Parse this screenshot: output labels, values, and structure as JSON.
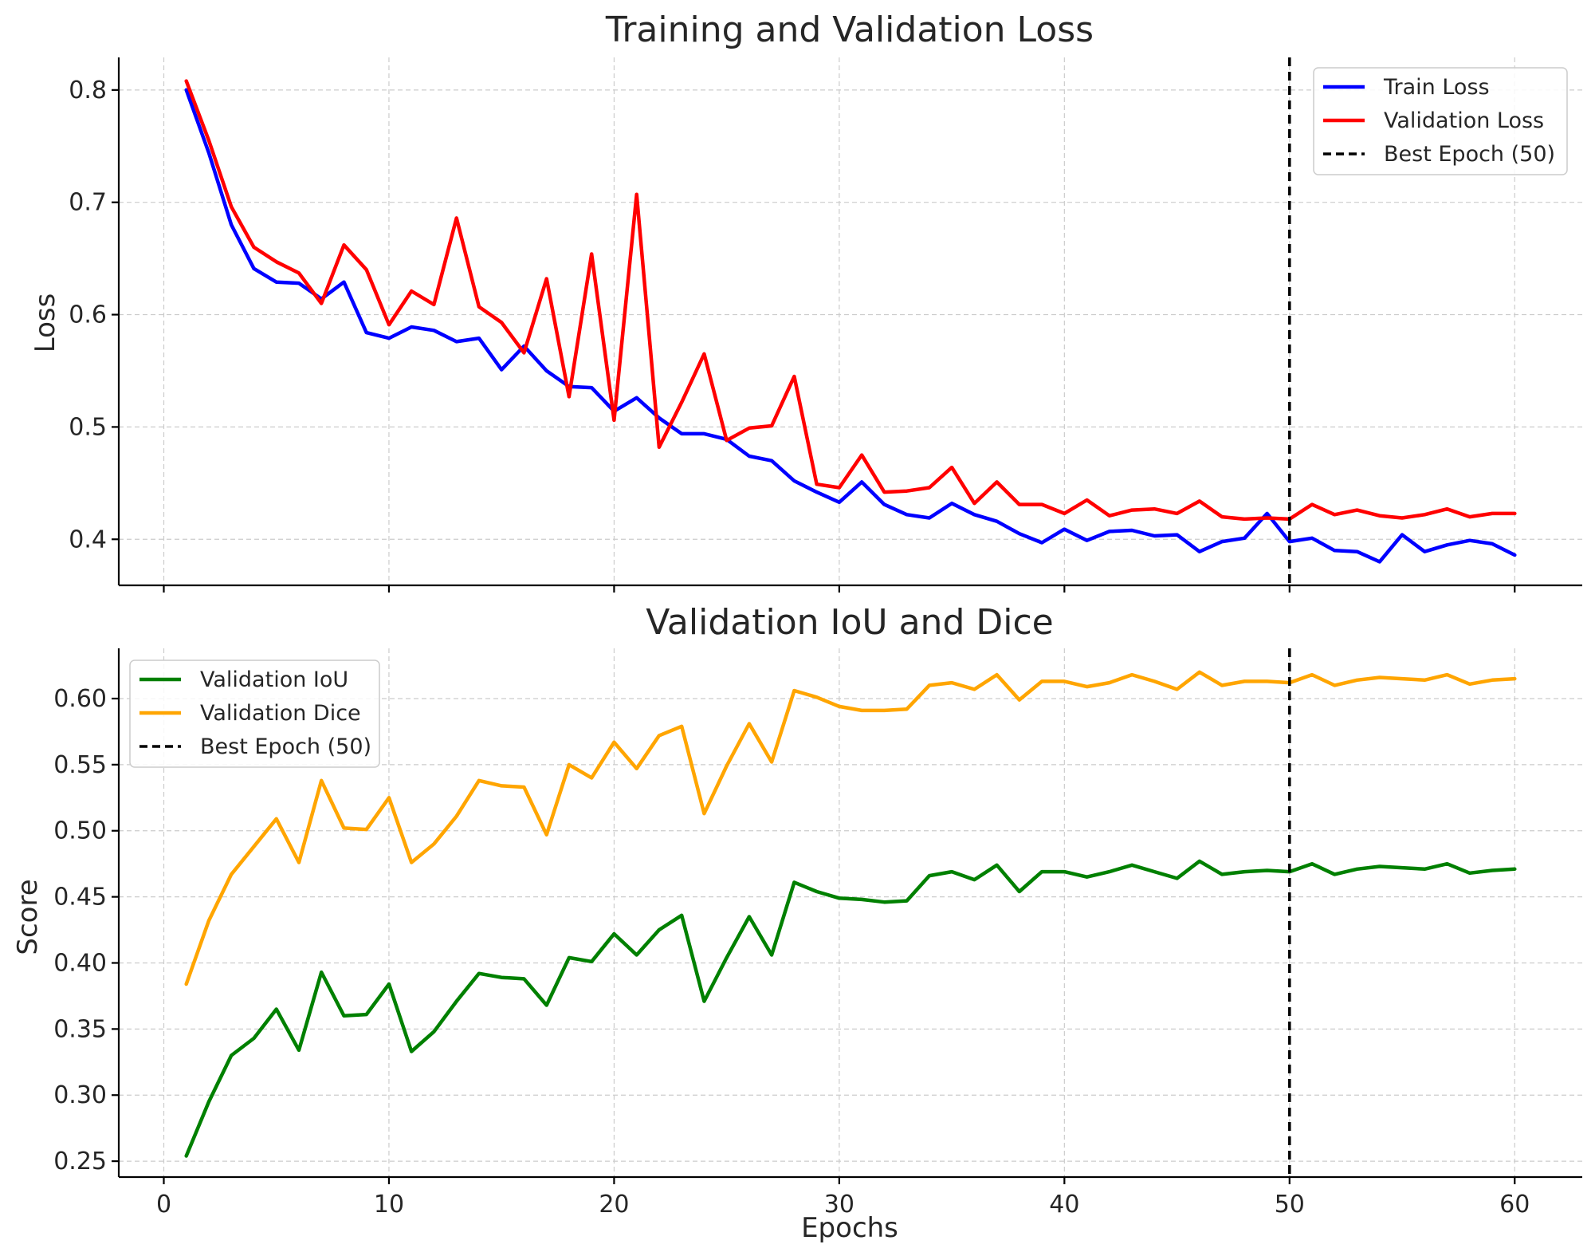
{
  "chart_data": [
    {
      "type": "line",
      "title": "Training and Validation Loss",
      "xlabel": "",
      "ylabel": "Loss",
      "xlim": [
        -2,
        63
      ],
      "ylim": [
        0.359,
        0.829
      ],
      "xticks": [
        0,
        10,
        20,
        30,
        40,
        50,
        60
      ],
      "yticks": [
        0.4,
        0.5,
        0.6,
        0.7,
        0.8
      ],
      "ytick_labels": [
        "0.4",
        "0.5",
        "0.6",
        "0.7",
        "0.8"
      ],
      "show_xtick_labels": false,
      "grid": true,
      "legend_position": "top-right",
      "x": [
        1,
        2,
        3,
        4,
        5,
        6,
        7,
        8,
        9,
        10,
        11,
        12,
        13,
        14,
        15,
        16,
        17,
        18,
        19,
        20,
        21,
        22,
        23,
        24,
        25,
        26,
        27,
        28,
        29,
        30,
        31,
        32,
        33,
        34,
        35,
        36,
        37,
        38,
        39,
        40,
        41,
        42,
        43,
        44,
        45,
        46,
        47,
        48,
        49,
        50,
        51,
        52,
        53,
        54,
        55,
        56,
        57,
        58,
        59,
        60
      ],
      "series": [
        {
          "name": "Train Loss",
          "color": "#0000ff",
          "values": [
            0.8,
            0.744,
            0.68,
            0.641,
            0.629,
            0.628,
            0.614,
            0.629,
            0.584,
            0.579,
            0.589,
            0.586,
            0.576,
            0.579,
            0.551,
            0.572,
            0.55,
            0.536,
            0.535,
            0.514,
            0.526,
            0.508,
            0.494,
            0.494,
            0.489,
            0.474,
            0.47,
            0.452,
            0.442,
            0.433,
            0.451,
            0.431,
            0.422,
            0.419,
            0.432,
            0.422,
            0.416,
            0.405,
            0.397,
            0.409,
            0.399,
            0.407,
            0.408,
            0.403,
            0.404,
            0.389,
            0.398,
            0.401,
            0.423,
            0.398,
            0.401,
            0.39,
            0.389,
            0.38,
            0.404,
            0.389,
            0.395,
            0.399,
            0.396,
            0.386
          ]
        },
        {
          "name": "Validation Loss",
          "color": "#ff0000",
          "values": [
            0.808,
            0.755,
            0.696,
            0.66,
            0.647,
            0.637,
            0.61,
            0.662,
            0.64,
            0.591,
            0.621,
            0.609,
            0.686,
            0.607,
            0.593,
            0.566,
            0.632,
            0.527,
            0.654,
            0.506,
            0.707,
            0.482,
            0.522,
            0.565,
            0.488,
            0.499,
            0.501,
            0.545,
            0.449,
            0.446,
            0.475,
            0.442,
            0.443,
            0.446,
            0.464,
            0.432,
            0.451,
            0.431,
            0.431,
            0.423,
            0.435,
            0.421,
            0.426,
            0.427,
            0.423,
            0.434,
            0.42,
            0.418,
            0.419,
            0.418,
            0.431,
            0.422,
            0.426,
            0.421,
            0.419,
            0.422,
            0.427,
            0.42,
            0.423,
            0.423
          ]
        }
      ],
      "vline": {
        "x": 50,
        "name": "Best Epoch (50)",
        "color": "#000000"
      }
    },
    {
      "type": "line",
      "title": "Validation IoU and Dice",
      "xlabel": "Epochs",
      "ylabel": "Score",
      "xlim": [
        -2,
        63
      ],
      "ylim": [
        0.238,
        0.638
      ],
      "xticks": [
        0,
        10,
        20,
        30,
        40,
        50,
        60
      ],
      "xtick_labels": [
        "0",
        "10",
        "20",
        "30",
        "40",
        "50",
        "60"
      ],
      "yticks": [
        0.25,
        0.3,
        0.35,
        0.4,
        0.45,
        0.5,
        0.55,
        0.6
      ],
      "ytick_labels": [
        "0.25",
        "0.30",
        "0.35",
        "0.40",
        "0.45",
        "0.50",
        "0.55",
        "0.60"
      ],
      "show_xtick_labels": true,
      "grid": true,
      "legend_position": "top-left",
      "x": [
        1,
        2,
        3,
        4,
        5,
        6,
        7,
        8,
        9,
        10,
        11,
        12,
        13,
        14,
        15,
        16,
        17,
        18,
        19,
        20,
        21,
        22,
        23,
        24,
        25,
        26,
        27,
        28,
        29,
        30,
        31,
        32,
        33,
        34,
        35,
        36,
        37,
        38,
        39,
        40,
        41,
        42,
        43,
        44,
        45,
        46,
        47,
        48,
        49,
        50,
        51,
        52,
        53,
        54,
        55,
        56,
        57,
        58,
        59,
        60
      ],
      "series": [
        {
          "name": "Validation IoU",
          "color": "#008000",
          "values": [
            0.254,
            0.295,
            0.33,
            0.343,
            0.365,
            0.334,
            0.393,
            0.36,
            0.361,
            0.384,
            0.333,
            0.348,
            0.371,
            0.392,
            0.389,
            0.388,
            0.368,
            0.404,
            0.401,
            0.422,
            0.406,
            0.425,
            0.436,
            0.371,
            0.404,
            0.435,
            0.406,
            0.461,
            0.454,
            0.449,
            0.448,
            0.446,
            0.447,
            0.466,
            0.469,
            0.463,
            0.474,
            0.454,
            0.469,
            0.469,
            0.465,
            0.469,
            0.474,
            0.469,
            0.464,
            0.477,
            0.467,
            0.469,
            0.47,
            0.469,
            0.475,
            0.467,
            0.471,
            0.473,
            0.472,
            0.471,
            0.475,
            0.468,
            0.47,
            0.471
          ]
        },
        {
          "name": "Validation Dice",
          "color": "#ffa500",
          "values": [
            0.384,
            0.432,
            0.467,
            0.488,
            0.509,
            0.476,
            0.538,
            0.502,
            0.501,
            0.525,
            0.476,
            0.49,
            0.511,
            0.538,
            0.534,
            0.533,
            0.497,
            0.55,
            0.54,
            0.567,
            0.547,
            0.572,
            0.579,
            0.513,
            0.549,
            0.581,
            0.552,
            0.606,
            0.601,
            0.594,
            0.591,
            0.591,
            0.592,
            0.61,
            0.612,
            0.607,
            0.618,
            0.599,
            0.613,
            0.613,
            0.609,
            0.612,
            0.618,
            0.613,
            0.607,
            0.62,
            0.61,
            0.613,
            0.613,
            0.612,
            0.618,
            0.61,
            0.614,
            0.616,
            0.615,
            0.614,
            0.618,
            0.611,
            0.614,
            0.615
          ]
        }
      ],
      "vline": {
        "x": 50,
        "name": "Best Epoch (50)",
        "color": "#000000"
      }
    }
  ]
}
